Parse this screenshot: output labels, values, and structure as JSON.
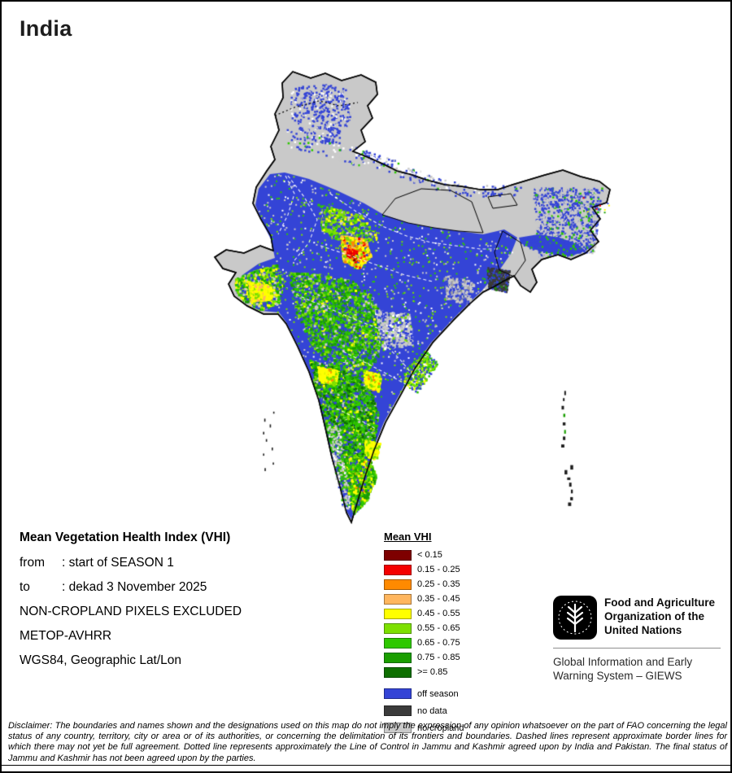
{
  "title": "India",
  "info": {
    "title": "Mean Vegetation Health Index (VHI)",
    "rows": [
      {
        "label": "from",
        "text": ": start of SEASON 1"
      },
      {
        "label": "to",
        "text": ": dekad 3 November 2025"
      },
      {
        "label": "",
        "text": "NON-CROPLAND PIXELS EXCLUDED"
      },
      {
        "label": "",
        "text": "METOP-AVHRR"
      },
      {
        "label": "",
        "text": "WGS84, Geographic Lat/Lon"
      }
    ]
  },
  "legend": {
    "title": "Mean VHI",
    "classes": [
      {
        "key": "lt_015",
        "label": "< 0.15",
        "color": "#7e0000"
      },
      {
        "key": "r15_25",
        "label": "0.15 - 0.25",
        "color": "#f40000"
      },
      {
        "key": "r25_35",
        "label": "0.25 - 0.35",
        "color": "#ff8a00"
      },
      {
        "key": "r35_45",
        "label": "0.35 - 0.45",
        "color": "#ffb65e"
      },
      {
        "key": "r45_55",
        "label": "0.45 - 0.55",
        "color": "#ffff00"
      },
      {
        "key": "r55_65",
        "label": "0.55 - 0.65",
        "color": "#7de000"
      },
      {
        "key": "r65_75",
        "label": "0.65 - 0.75",
        "color": "#2ec800"
      },
      {
        "key": "r75_85",
        "label": "0.75 - 0.85",
        "color": "#1a9e00"
      },
      {
        "key": "ge_85",
        "label": ">= 0.85",
        "color": "#0e6f00"
      }
    ],
    "extras": [
      {
        "key": "off_season",
        "label": "off season",
        "color": "#3444d6"
      },
      {
        "key": "no_data",
        "label": "no data",
        "color": "#3b3b3b"
      },
      {
        "key": "no_cropland",
        "label": "no cropland",
        "color": "#c9c9c9"
      }
    ]
  },
  "fao": {
    "logo_icon": "fao-wheat-emblem",
    "org_name": "Food and Agriculture Organization of the United Nations",
    "giews": "Global Information and Early Warning System – GIEWS"
  },
  "disclaimer": "Disclaimer: The boundaries and names shown and the designations used on this map do not imply the expression of any opinion whatsoever on the part of FAO concerning the legal status of any country, territory, city or area or of its authorities, or concerning the delimitation of its frontiers and boundaries. Dashed lines represent approximate border lines for which there may not yet be full agreement. Dotted line represents approximately the Line of Control in Jammu and Kashmir agreed upon by India and Pakistan. The final status of Jammu and Kashmir has not been agreed upon by the parties."
}
